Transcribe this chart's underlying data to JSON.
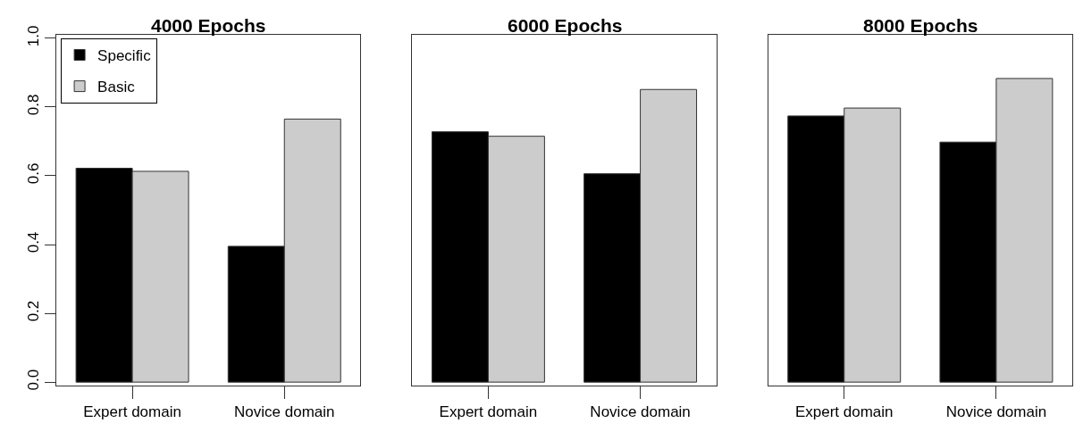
{
  "chart_data": [
    {
      "type": "bar",
      "title": "4000 Epochs",
      "categories": [
        "Expert domain",
        "Novice domain"
      ],
      "legend": "top left",
      "ylim": [
        -0.01,
        1.01
      ],
      "yticks": [
        {
          "value": 0,
          "label": "0.0"
        },
        0.2,
        0.4,
        0.6,
        0.8,
        {
          "value": 1,
          "label": "1.0"
        }
      ],
      "series": [
        {
          "name": "Specific",
          "color": "#000000",
          "values": [
            0.622,
            0.395
          ]
        },
        {
          "name": "Basic",
          "color": "#cccccc",
          "values": [
            0.613,
            0.765
          ]
        }
      ]
    },
    {
      "type": "bar",
      "title": "6000 Epochs",
      "categories": [
        "Expert domain",
        "Novice domain"
      ],
      "tick_labels": "x",
      "ylim": [
        -0.01,
        1.01
      ],
      "series": [
        {
          "color": "#000000",
          "values": [
            0.728,
            0.606
          ]
        },
        {
          "color": "#cccccc",
          "values": [
            0.715,
            0.851
          ]
        }
      ]
    },
    {
      "type": "bar",
      "title": "8000 Epochs",
      "categories": [
        "Expert domain",
        "Novice domain"
      ],
      "tick_labels": "x",
      "ylim": [
        -0.01,
        1.01
      ],
      "series": [
        {
          "color": "#000000",
          "values": [
            0.774,
            0.698
          ]
        },
        {
          "color": "#cccccc",
          "values": [
            0.797,
            0.883
          ]
        }
      ]
    }
  ]
}
